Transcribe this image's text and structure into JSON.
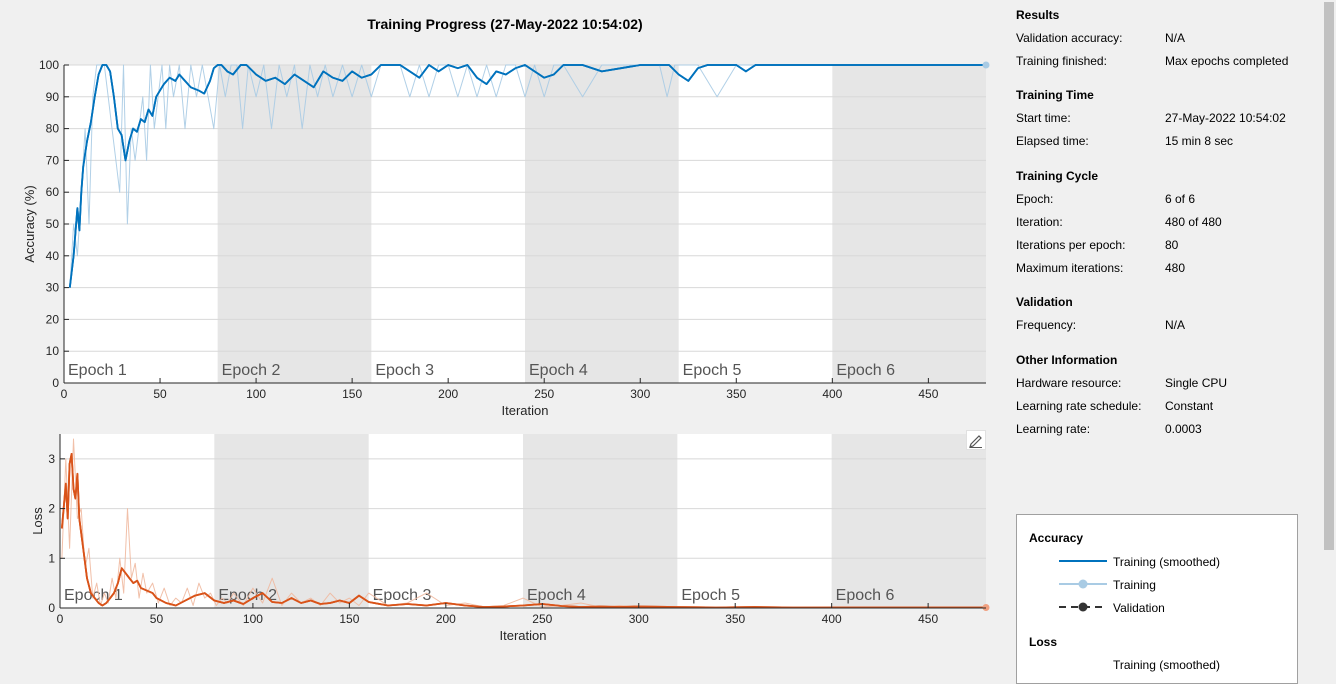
{
  "title": "Training Progress (27-May-2022 10:54:02)",
  "colors": {
    "smoothed_acc": "#0072bd",
    "raw_acc": "#a9cbe4",
    "smoothed_loss": "#d95319",
    "raw_loss": "#f0b9a0",
    "epoch_shade": "#e6e6e6",
    "validation": "#333333"
  },
  "panel": {
    "sections": [
      {
        "heading": "Results",
        "rows": [
          {
            "k": "Validation accuracy:",
            "v": "N/A"
          },
          {
            "k": "Training finished:",
            "v": "Max epochs completed"
          }
        ]
      },
      {
        "heading": "Training Time",
        "rows": [
          {
            "k": "Start time:",
            "v": "27-May-2022 10:54:02"
          },
          {
            "k": "Elapsed time:",
            "v": "15 min 8 sec"
          }
        ]
      },
      {
        "heading": "Training Cycle",
        "rows": [
          {
            "k": "Epoch:",
            "v": "6 of 6"
          },
          {
            "k": "Iteration:",
            "v": "480 of 480"
          },
          {
            "k": "Iterations per epoch:",
            "v": "80"
          },
          {
            "k": "Maximum iterations:",
            "v": "480"
          }
        ]
      },
      {
        "heading": "Validation",
        "rows": [
          {
            "k": "Frequency:",
            "v": "N/A"
          }
        ]
      },
      {
        "heading": "Other Information",
        "rows": [
          {
            "k": "Hardware resource:",
            "v": "Single CPU"
          },
          {
            "k": "Learning rate schedule:",
            "v": "Constant"
          },
          {
            "k": "Learning rate:",
            "v": "0.0003"
          }
        ]
      }
    ]
  },
  "legend": {
    "accuracy_heading": "Accuracy",
    "loss_heading": "Loss",
    "items": [
      "Training (smoothed)",
      "Training",
      "Validation"
    ],
    "loss_first_item": "Training (smoothed)"
  },
  "chart_data": [
    {
      "type": "line",
      "xlabel": "Iteration",
      "ylabel": "Accuracy (%)",
      "xlim": [
        0,
        480
      ],
      "ylim": [
        0,
        100
      ],
      "xticks": [
        0,
        50,
        100,
        150,
        200,
        250,
        300,
        350,
        400,
        450
      ],
      "yticks": [
        0,
        10,
        20,
        30,
        40,
        50,
        60,
        70,
        80,
        90,
        100
      ],
      "epoch_labels": [
        "Epoch 1",
        "Epoch 2",
        "Epoch 3",
        "Epoch 4",
        "Epoch 5",
        "Epoch 6"
      ],
      "iterations_per_epoch": 80,
      "grid": true,
      "series": [
        {
          "name": "Training (smoothed)",
          "x": [
            3,
            5,
            7,
            8,
            9,
            10,
            12,
            14,
            16,
            18,
            20,
            22,
            24,
            26,
            28,
            30,
            32,
            34,
            36,
            38,
            40,
            42,
            44,
            46,
            48,
            50,
            52,
            55,
            58,
            60,
            63,
            66,
            70,
            73,
            76,
            78,
            80,
            82,
            85,
            88,
            92,
            95,
            100,
            105,
            110,
            115,
            120,
            125,
            130,
            135,
            140,
            145,
            150,
            155,
            160,
            165,
            170,
            175,
            180,
            185,
            190,
            195,
            200,
            205,
            210,
            215,
            220,
            225,
            230,
            235,
            240,
            245,
            250,
            255,
            260,
            270,
            280,
            290,
            300,
            310,
            315,
            320,
            325,
            330,
            335,
            340,
            345,
            350,
            355,
            360,
            380,
            400,
            420,
            440,
            460,
            480
          ],
          "y": [
            30,
            40,
            55,
            48,
            60,
            68,
            76,
            82,
            90,
            97,
            100,
            100,
            98,
            90,
            80,
            78,
            70,
            76,
            80,
            79,
            83,
            82,
            86,
            84,
            90,
            92,
            94,
            96,
            95,
            97,
            95,
            93,
            92,
            91,
            95,
            99,
            100,
            100,
            98,
            97,
            100,
            100,
            97,
            95,
            96,
            94,
            97,
            95,
            93,
            98,
            96,
            95,
            98,
            96,
            97,
            100,
            100,
            100,
            98,
            96,
            100,
            98,
            100,
            99,
            100,
            96,
            94,
            98,
            97,
            99,
            100,
            98,
            96,
            97,
            100,
            100,
            98,
            99,
            100,
            100,
            100,
            97,
            95,
            99,
            100,
            100,
            100,
            100,
            98,
            100,
            100,
            100,
            100,
            100,
            100,
            100
          ]
        },
        {
          "name": "Training",
          "x": [
            3,
            5,
            7,
            9,
            11,
            13,
            15,
            17,
            19,
            21,
            23,
            25,
            27,
            29,
            31,
            33,
            35,
            37,
            39,
            41,
            43,
            45,
            47,
            49,
            51,
            53,
            55,
            57,
            60,
            63,
            66,
            69,
            72,
            75,
            78,
            81,
            84,
            87,
            90,
            93,
            96,
            100,
            104,
            108,
            112,
            116,
            120,
            124,
            128,
            132,
            136,
            140,
            145,
            150,
            155,
            160,
            165,
            170,
            175,
            180,
            185,
            190,
            195,
            200,
            205,
            210,
            215,
            220,
            225,
            230,
            235,
            240,
            245,
            250,
            255,
            260,
            270,
            280,
            290,
            300,
            310,
            314,
            318,
            322,
            330,
            340,
            350,
            355,
            360,
            380,
            400,
            440,
            480
          ],
          "y": [
            30,
            50,
            40,
            60,
            80,
            50,
            90,
            100,
            100,
            100,
            90,
            80,
            70,
            60,
            100,
            50,
            80,
            70,
            80,
            90,
            70,
            100,
            80,
            90,
            100,
            80,
            100,
            90,
            100,
            80,
            100,
            90,
            100,
            90,
            80,
            100,
            90,
            100,
            100,
            80,
            100,
            90,
            100,
            80,
            100,
            90,
            100,
            80,
            100,
            90,
            100,
            90,
            100,
            90,
            100,
            90,
            100,
            100,
            100,
            90,
            100,
            90,
            100,
            100,
            90,
            100,
            90,
            100,
            90,
            100,
            100,
            90,
            100,
            90,
            100,
            100,
            90,
            100,
            100,
            100,
            100,
            90,
            100,
            100,
            100,
            90,
            100,
            100,
            100,
            100,
            100,
            100,
            100
          ]
        },
        {
          "name": "Validation",
          "x": [],
          "y": []
        }
      ]
    },
    {
      "type": "line",
      "xlabel": "Iteration",
      "ylabel": "Loss",
      "xlim": [
        0,
        480
      ],
      "ylim": [
        0,
        3.5
      ],
      "xticks": [
        0,
        50,
        100,
        150,
        200,
        250,
        300,
        350,
        400,
        450
      ],
      "yticks": [
        0,
        1,
        2,
        3
      ],
      "epoch_labels": [
        "Epoch 1",
        "Epoch 2",
        "Epoch 3",
        "Epoch 4",
        "Epoch 5",
        "Epoch 6"
      ],
      "iterations_per_epoch": 80,
      "grid": true,
      "series": [
        {
          "name": "Training (smoothed)",
          "x": [
            1,
            3,
            4,
            5,
            6,
            7,
            8,
            9,
            10,
            12,
            14,
            16,
            18,
            20,
            22,
            24,
            26,
            28,
            30,
            32,
            34,
            36,
            38,
            40,
            42,
            45,
            48,
            50,
            55,
            60,
            65,
            70,
            75,
            80,
            85,
            90,
            95,
            100,
            105,
            110,
            115,
            120,
            125,
            130,
            135,
            140,
            145,
            150,
            155,
            160,
            170,
            180,
            190,
            200,
            210,
            220,
            230,
            240,
            250,
            260,
            270,
            280,
            290,
            300,
            320,
            340,
            360,
            380,
            400,
            420,
            440,
            460,
            480
          ],
          "y": [
            1.6,
            2.5,
            1.8,
            2.9,
            3.1,
            2.4,
            2.2,
            2.7,
            1.8,
            1.2,
            0.6,
            0.3,
            0.2,
            0.1,
            0.05,
            0.1,
            0.2,
            0.3,
            0.5,
            0.8,
            0.7,
            0.6,
            0.5,
            0.55,
            0.4,
            0.35,
            0.3,
            0.2,
            0.1,
            0.05,
            0.15,
            0.25,
            0.3,
            0.15,
            0.1,
            0.15,
            0.08,
            0.2,
            0.3,
            0.12,
            0.1,
            0.2,
            0.1,
            0.15,
            0.08,
            0.1,
            0.15,
            0.1,
            0.25,
            0.12,
            0.05,
            0.08,
            0.05,
            0.1,
            0.05,
            0.02,
            0.03,
            0.05,
            0.08,
            0.04,
            0.02,
            0.03,
            0.02,
            0.03,
            0.02,
            0.01,
            0.02,
            0.01,
            0.01,
            0.01,
            0.01,
            0.01,
            0.01
          ]
        },
        {
          "name": "Training",
          "x": [
            1,
            3,
            5,
            7,
            9,
            11,
            13,
            15,
            17,
            19,
            21,
            23,
            25,
            27,
            29,
            31,
            33,
            35,
            37,
            39,
            41,
            43,
            45,
            48,
            51,
            54,
            57,
            60,
            63,
            66,
            69,
            72,
            75,
            78,
            81,
            84,
            87,
            90,
            95,
            100,
            105,
            110,
            115,
            120,
            125,
            130,
            135,
            140,
            145,
            150,
            155,
            160,
            170,
            180,
            190,
            200,
            210,
            220,
            230,
            240,
            250,
            260,
            270,
            280,
            290,
            300,
            320,
            340,
            360,
            380,
            400,
            440,
            480
          ],
          "y": [
            1.0,
            3.0,
            1.2,
            3.4,
            1.8,
            2.0,
            0.8,
            1.2,
            0.2,
            0.5,
            0.05,
            0.3,
            0.1,
            0.6,
            0.2,
            1.0,
            0.3,
            2.0,
            0.6,
            0.9,
            0.2,
            0.7,
            0.3,
            0.5,
            0.1,
            0.4,
            0.05,
            0.2,
            0.1,
            0.4,
            0.05,
            0.5,
            0.2,
            0.3,
            0.05,
            0.2,
            0.1,
            0.3,
            0.05,
            0.4,
            0.1,
            0.6,
            0.05,
            0.3,
            0.1,
            0.2,
            0.05,
            0.3,
            0.1,
            0.2,
            0.05,
            0.3,
            0.05,
            0.1,
            0.3,
            0.05,
            0.1,
            0.02,
            0.05,
            0.2,
            0.02,
            0.05,
            0.1,
            0.02,
            0.05,
            0.02,
            0.03,
            0.02,
            0.01,
            0.02,
            0.01,
            0.01,
            0.01
          ]
        }
      ]
    }
  ]
}
